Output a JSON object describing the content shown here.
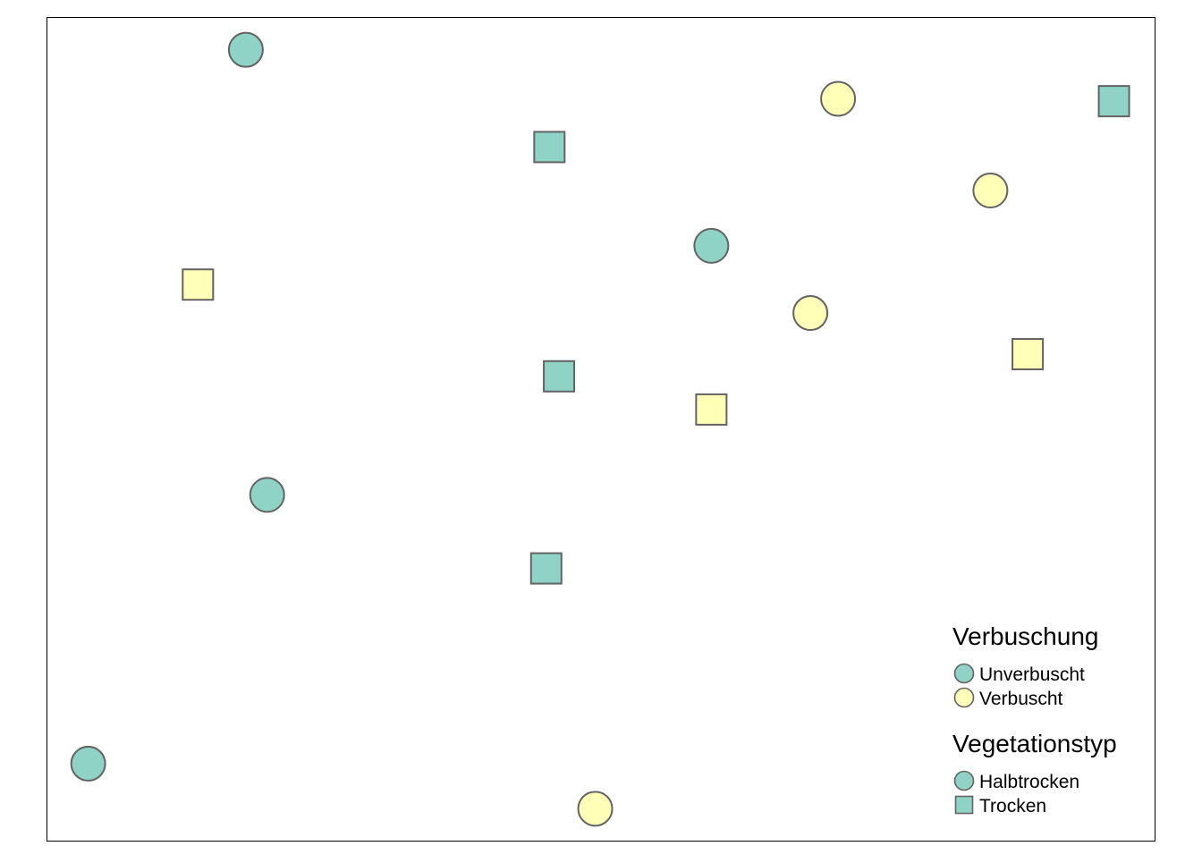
{
  "chart_data": {
    "type": "scatter",
    "title": "",
    "xlabel": "",
    "ylabel": "",
    "grid": false,
    "axes_visible": false,
    "legend_position": "bottom-right",
    "xlim": [
      0,
      1
    ],
    "ylim": [
      0,
      1
    ],
    "colors": {
      "Unverbuscht": "#8fd3c6",
      "Verbuscht": "#ffffb8",
      "stroke": "#636363"
    },
    "points": [
      {
        "x": 0.167,
        "y": 0.98,
        "verbuschung": "Unverbuscht",
        "vegetationstyp": "Halbtrocken"
      },
      {
        "x": 0.723,
        "y": 0.918,
        "verbuschung": "Verbuscht",
        "vegetationstyp": "Halbtrocken"
      },
      {
        "x": 0.982,
        "y": 0.915,
        "verbuschung": "Unverbuscht",
        "vegetationstyp": "Trocken"
      },
      {
        "x": 0.452,
        "y": 0.857,
        "verbuschung": "Unverbuscht",
        "vegetationstyp": "Trocken"
      },
      {
        "x": 0.866,
        "y": 0.802,
        "verbuschung": "Verbuscht",
        "vegetationstyp": "Halbtrocken"
      },
      {
        "x": 0.604,
        "y": 0.732,
        "verbuschung": "Unverbuscht",
        "vegetationstyp": "Halbtrocken"
      },
      {
        "x": 0.122,
        "y": 0.683,
        "verbuschung": "Verbuscht",
        "vegetationstyp": "Trocken"
      },
      {
        "x": 0.697,
        "y": 0.647,
        "verbuschung": "Verbuscht",
        "vegetationstyp": "Halbtrocken"
      },
      {
        "x": 0.901,
        "y": 0.595,
        "verbuschung": "Verbuscht",
        "vegetationstyp": "Trocken"
      },
      {
        "x": 0.461,
        "y": 0.567,
        "verbuschung": "Unverbuscht",
        "vegetationstyp": "Trocken"
      },
      {
        "x": 0.604,
        "y": 0.525,
        "verbuschung": "Verbuscht",
        "vegetationstyp": "Trocken"
      },
      {
        "x": 0.187,
        "y": 0.417,
        "verbuschung": "Unverbuscht",
        "vegetationstyp": "Halbtrocken"
      },
      {
        "x": 0.449,
        "y": 0.324,
        "verbuschung": "Unverbuscht",
        "vegetationstyp": "Trocken"
      },
      {
        "x": 0.019,
        "y": 0.077,
        "verbuschung": "Unverbuscht",
        "vegetationstyp": "Halbtrocken"
      },
      {
        "x": 0.495,
        "y": 0.02,
        "verbuschung": "Verbuscht",
        "vegetationstyp": "Halbtrocken"
      }
    ],
    "legends": [
      {
        "title": "Verbuschung",
        "items": [
          {
            "label": "Unverbuscht",
            "shape": "circle",
            "color": "#8fd3c6"
          },
          {
            "label": "Verbuscht",
            "shape": "circle",
            "color": "#ffffb8"
          }
        ]
      },
      {
        "title": "Vegetationstyp",
        "items": [
          {
            "label": "Halbtrocken",
            "shape": "circle",
            "color": "#8fd3c6"
          },
          {
            "label": "Trocken",
            "shape": "square",
            "color": "#8fd3c6"
          }
        ]
      }
    ]
  }
}
